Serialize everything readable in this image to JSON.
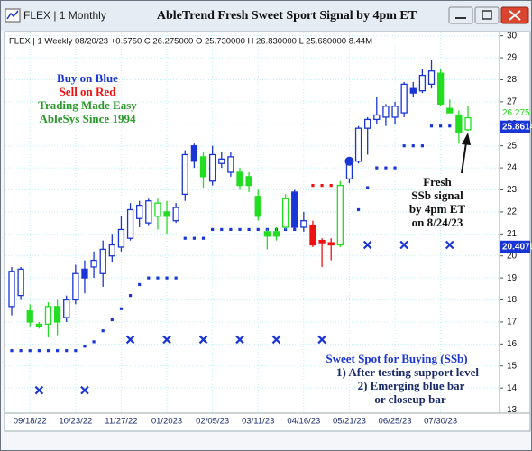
{
  "window_title": "FLEX | 1 Monthly",
  "chart_data": {
    "type": "candlestick",
    "title": "AbleTrend Fresh Sweet Sport Signal by 4pm ET",
    "header": "FLEX | 1 Weekly 08/20/23 +0.5750 C 26.275000 O 25.730000 H 26.830000 L 25.680000 8.44M",
    "categories": [
      null,
      null,
      "09/18/22",
      null,
      null,
      null,
      null,
      "10/23/22",
      null,
      null,
      null,
      null,
      "11/27/22",
      null,
      null,
      null,
      null,
      "01/2023",
      null,
      null,
      null,
      null,
      "02/05/23",
      null,
      null,
      null,
      null,
      "03/11/23",
      null,
      null,
      null,
      null,
      "04/16/23",
      null,
      null,
      null,
      null,
      "05/21/23",
      null,
      null,
      null,
      null,
      "06/25/23",
      null,
      null,
      null,
      null,
      "07/30/23",
      null,
      null,
      null
    ],
    "open": [
      17.7,
      18.2,
      17.5,
      16.9,
      16.9,
      17.7,
      17.2,
      18.0,
      19.4,
      19.5,
      19.2,
      20.0,
      20.4,
      20.8,
      21.7,
      21.5,
      21.8,
      22.0,
      21.6,
      22.8,
      25.0,
      24.5,
      23.4,
      24.2,
      23.8,
      23.8,
      23.6,
      22.7,
      21.1,
      21.1,
      21.3,
      22.9,
      21.3,
      21.4,
      20.7,
      20.6,
      20.5,
      23.5,
      24.3,
      25.8,
      26.2,
      26.3,
      26.3,
      26.5,
      27.6,
      27.5,
      27.8,
      28.3,
      26.7,
      26.4,
      25.73
    ],
    "high": [
      19.5,
      19.5,
      17.8,
      17.0,
      17.9,
      18.0,
      18.2,
      19.6,
      19.8,
      20.2,
      20.7,
      21.0,
      21.8,
      22.4,
      22.5,
      22.6,
      22.6,
      22.5,
      22.4,
      24.8,
      25.1,
      24.7,
      25.0,
      24.7,
      24.7,
      24.0,
      23.8,
      23.0,
      21.2,
      21.3,
      22.8,
      23.0,
      22.0,
      21.6,
      20.8,
      20.8,
      23.4,
      24.4,
      25.9,
      26.3,
      27.2,
      26.9,
      27.0,
      27.9,
      27.9,
      28.5,
      28.9,
      28.5,
      27.1,
      26.6,
      26.83
    ],
    "low": [
      17.3,
      18.0,
      16.8,
      16.7,
      16.3,
      16.4,
      17.0,
      17.8,
      18.3,
      19.0,
      18.6,
      19.7,
      20.2,
      20.7,
      21.3,
      21.4,
      21.2,
      21.0,
      21.5,
      22.5,
      24.0,
      23.1,
      23.2,
      24.0,
      23.6,
      23.0,
      22.9,
      21.6,
      20.3,
      20.7,
      21.2,
      21.2,
      21.1,
      20.4,
      19.5,
      19.8,
      20.4,
      23.3,
      24.2,
      24.6,
      26.0,
      25.9,
      26.0,
      26.3,
      27.2,
      27.4,
      27.6,
      26.8,
      26.5,
      25.1,
      25.68
    ],
    "close": [
      19.3,
      19.4,
      17.0,
      16.8,
      17.7,
      17.0,
      18.0,
      19.2,
      19.0,
      19.8,
      20.3,
      20.5,
      21.2,
      22.1,
      22.3,
      22.5,
      22.4,
      21.8,
      22.2,
      24.6,
      24.3,
      23.6,
      24.6,
      24.4,
      24.5,
      23.2,
      23.2,
      21.8,
      20.9,
      20.9,
      22.6,
      21.3,
      21.6,
      20.5,
      20.6,
      20.5,
      23.2,
      24.2,
      25.8,
      26.2,
      26.4,
      26.8,
      26.8,
      27.8,
      27.4,
      28.2,
      28.4,
      26.9,
      26.5,
      25.6,
      26.275
    ],
    "colors": [
      "#1a35d6",
      "#1a35d6",
      "#22dd22",
      "#22dd22",
      "#22dd22",
      "#22dd22",
      "#1a35d6",
      "#1a35d6",
      "#1a35d6",
      "#1a35d6",
      "#1a35d6",
      "#1a35d6",
      "#1a35d6",
      "#1a35d6",
      "#1a35d6",
      "#1a35d6",
      "#22dd22",
      "#22dd22",
      "#1a35d6",
      "#1a35d6",
      "#1a35d6",
      "#22dd22",
      "#1a35d6",
      "#1a35d6",
      "#1a35d6",
      "#22dd22",
      "#22dd22",
      "#22dd22",
      "#22dd22",
      "#22dd22",
      "#22dd22",
      "#1a35d6",
      "#1a35d6",
      "#ee1111",
      "#ee1111",
      "#ee1111",
      "#22dd22",
      "#1a35d6",
      "#1a35d6",
      "#1a35d6",
      "#1a35d6",
      "#1a35d6",
      "#1a35d6",
      "#1a35d6",
      "#1a35d6",
      "#1a35d6",
      "#1a35d6",
      "#22dd22",
      "#22dd22",
      "#22dd22",
      "#22dd22"
    ],
    "stops": [
      15.7,
      15.7,
      15.7,
      15.7,
      15.7,
      15.7,
      15.7,
      15.7,
      15.9,
      16.1,
      16.6,
      17.1,
      17.6,
      18.2,
      18.7,
      19.0,
      19.0,
      19.0,
      19.0,
      20.8,
      20.8,
      20.8,
      21.2,
      21.2,
      21.2,
      21.2,
      21.2,
      21.2,
      21.2,
      21.2,
      21.2,
      21.2,
      null,
      23.2,
      23.2,
      23.2,
      null,
      null,
      22.1,
      23.1,
      24.0,
      24.0,
      24.0,
      25.0,
      25.0,
      25.0,
      25.9,
      25.9,
      25.9,
      25.9,
      25.9
    ],
    "stop_colors": [
      "#1a35d6",
      "#1a35d6",
      "#1a35d6",
      "#1a35d6",
      "#1a35d6",
      "#1a35d6",
      "#1a35d6",
      "#1a35d6",
      "#1a35d6",
      "#1a35d6",
      "#1a35d6",
      "#1a35d6",
      "#1a35d6",
      "#1a35d6",
      "#1a35d6",
      "#1a35d6",
      "#1a35d6",
      "#1a35d6",
      "#1a35d6",
      "#1a35d6",
      "#1a35d6",
      "#1a35d6",
      "#1a35d6",
      "#1a35d6",
      "#1a35d6",
      "#1a35d6",
      "#1a35d6",
      "#1a35d6",
      "#1a35d6",
      "#1a35d6",
      "#1a35d6",
      "#1a35d6",
      null,
      "#ee1111",
      "#ee1111",
      "#ee1111",
      null,
      null,
      "#1a35d6",
      "#1a35d6",
      "#1a35d6",
      "#1a35d6",
      "#1a35d6",
      "#1a35d6",
      "#1a35d6",
      "#1a35d6",
      "#1a35d6",
      "#1a35d6",
      "#1a35d6",
      "#1a35d6",
      "#1a35d6"
    ],
    "signal_dots": [
      null,
      null,
      null,
      null,
      null,
      null,
      null,
      null,
      null,
      null,
      null,
      null,
      null,
      null,
      null,
      null,
      null,
      null,
      null,
      null,
      null,
      null,
      null,
      null,
      null,
      null,
      null,
      null,
      null,
      null,
      null,
      null,
      null,
      null,
      null,
      null,
      null,
      24.3,
      null,
      null,
      null,
      null,
      null,
      null,
      null,
      null,
      null,
      null,
      null,
      null,
      null
    ],
    "x_markers": [
      null,
      null,
      null,
      13.9,
      null,
      null,
      null,
      null,
      13.9,
      null,
      null,
      null,
      null,
      16.2,
      null,
      null,
      null,
      16.2,
      null,
      null,
      null,
      16.2,
      null,
      null,
      null,
      16.2,
      null,
      null,
      null,
      16.2,
      null,
      null,
      null,
      null,
      16.2,
      null,
      null,
      null,
      null,
      20.5,
      null,
      null,
      null,
      20.5,
      null,
      null,
      null,
      null,
      20.5,
      null,
      null
    ],
    "ylim": [
      12.9,
      30.15
    ],
    "yticks": [
      13,
      14,
      15,
      16,
      17,
      18,
      19,
      20,
      21,
      22,
      23,
      24,
      25,
      26,
      27,
      28,
      29,
      30
    ],
    "grid": true,
    "price_tags": [
      {
        "value": 26.275,
        "label": "26.275",
        "color": "#22dd22"
      },
      {
        "value": 25.8614,
        "label": "25.8614",
        "color": "#1a35d6"
      },
      {
        "value": 20.407,
        "label": "20.4070",
        "color": "#1a35d6"
      }
    ],
    "annotations": [
      {
        "text": "Buy on Blue",
        "color": "#1a35d6"
      },
      {
        "text": "Sell on Red",
        "color": "#ee1111"
      },
      {
        "text": "Trading Made Easy",
        "color": "#2a9a2a"
      },
      {
        "text": "AbleSys Since 1994",
        "color": "#2a9a2a"
      }
    ],
    "signal_note": [
      "Fresh",
      "SSb signal",
      "by 4pm ET",
      "on 8/24/23"
    ],
    "ssb_note": [
      "Sweet Spot for Buying (SSb)",
      "1) After testing support level",
      "2) Emerging blue bar",
      "or closeup bar"
    ]
  }
}
